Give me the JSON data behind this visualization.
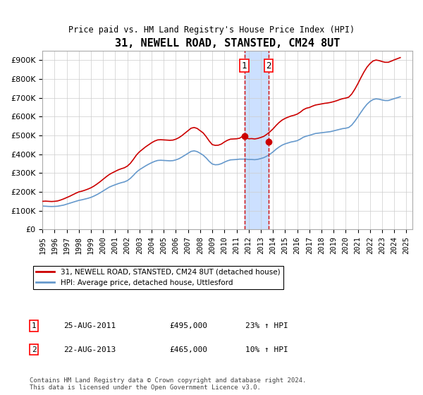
{
  "title": "31, NEWELL ROAD, STANSTED, CM24 8UT",
  "subtitle": "Price paid vs. HM Land Registry's House Price Index (HPI)",
  "ylabel_ticks": [
    "£0",
    "£100K",
    "£200K",
    "£300K",
    "£400K",
    "£500K",
    "£600K",
    "£700K",
    "£800K",
    "£900K"
  ],
  "ytick_values": [
    0,
    100000,
    200000,
    300000,
    400000,
    500000,
    600000,
    700000,
    800000,
    900000
  ],
  "ylim": [
    0,
    950000
  ],
  "xlim_start": 1995.0,
  "xlim_end": 2025.5,
  "legend_line1": "31, NEWELL ROAD, STANSTED, CM24 8UT (detached house)",
  "legend_line2": "HPI: Average price, detached house, Uttlesford",
  "sale1_date": "25-AUG-2011",
  "sale1_price": "£495,000",
  "sale1_hpi": "23% ↑ HPI",
  "sale1_year": 2011.65,
  "sale2_date": "22-AUG-2013",
  "sale2_price": "£465,000",
  "sale2_hpi": "10% ↑ HPI",
  "sale2_year": 2013.65,
  "footnote": "Contains HM Land Registry data © Crown copyright and database right 2024.\nThis data is licensed under the Open Government Licence v3.0.",
  "line_color_red": "#cc0000",
  "line_color_blue": "#6699cc",
  "vline_color": "#cc0000",
  "shade_color": "#cce0ff",
  "marker1_price": 495000,
  "marker2_price": 465000,
  "hpi_years": [
    1995.0,
    1995.25,
    1995.5,
    1995.75,
    1996.0,
    1996.25,
    1996.5,
    1996.75,
    1997.0,
    1997.25,
    1997.5,
    1997.75,
    1998.0,
    1998.25,
    1998.5,
    1998.75,
    1999.0,
    1999.25,
    1999.5,
    1999.75,
    2000.0,
    2000.25,
    2000.5,
    2000.75,
    2001.0,
    2001.25,
    2001.5,
    2001.75,
    2002.0,
    2002.25,
    2002.5,
    2002.75,
    2003.0,
    2003.25,
    2003.5,
    2003.75,
    2004.0,
    2004.25,
    2004.5,
    2004.75,
    2005.0,
    2005.25,
    2005.5,
    2005.75,
    2006.0,
    2006.25,
    2006.5,
    2006.75,
    2007.0,
    2007.25,
    2007.5,
    2007.75,
    2008.0,
    2008.25,
    2008.5,
    2008.75,
    2009.0,
    2009.25,
    2009.5,
    2009.75,
    2010.0,
    2010.25,
    2010.5,
    2010.75,
    2011.0,
    2011.25,
    2011.5,
    2011.75,
    2012.0,
    2012.25,
    2012.5,
    2012.75,
    2013.0,
    2013.25,
    2013.5,
    2013.75,
    2014.0,
    2014.25,
    2014.5,
    2014.75,
    2015.0,
    2015.25,
    2015.5,
    2015.75,
    2016.0,
    2016.25,
    2016.5,
    2016.75,
    2017.0,
    2017.25,
    2017.5,
    2017.75,
    2018.0,
    2018.25,
    2018.5,
    2018.75,
    2019.0,
    2019.25,
    2019.5,
    2019.75,
    2020.0,
    2020.25,
    2020.5,
    2020.75,
    2021.0,
    2021.25,
    2021.5,
    2021.75,
    2022.0,
    2022.25,
    2022.5,
    2022.75,
    2023.0,
    2023.25,
    2023.5,
    2023.75,
    2024.0,
    2024.25,
    2024.5
  ],
  "hpi_values": [
    125000,
    124000,
    123000,
    122500,
    123000,
    124000,
    127000,
    130000,
    135000,
    140000,
    145000,
    150000,
    155000,
    158000,
    162000,
    166000,
    171000,
    178000,
    186000,
    195000,
    205000,
    215000,
    225000,
    232000,
    238000,
    244000,
    249000,
    253000,
    260000,
    272000,
    288000,
    305000,
    318000,
    328000,
    338000,
    347000,
    355000,
    362000,
    367000,
    368000,
    367000,
    366000,
    365000,
    366000,
    370000,
    376000,
    385000,
    395000,
    405000,
    415000,
    418000,
    414000,
    405000,
    395000,
    380000,
    362000,
    348000,
    344000,
    345000,
    350000,
    358000,
    365000,
    370000,
    371000,
    372000,
    374000,
    374000,
    374000,
    372000,
    372000,
    371000,
    373000,
    377000,
    382000,
    390000,
    400000,
    412000,
    426000,
    438000,
    448000,
    455000,
    460000,
    465000,
    468000,
    472000,
    480000,
    490000,
    496000,
    500000,
    505000,
    510000,
    512000,
    514000,
    516000,
    518000,
    520000,
    524000,
    528000,
    532000,
    536000,
    538000,
    542000,
    555000,
    575000,
    598000,
    622000,
    645000,
    665000,
    680000,
    690000,
    694000,
    692000,
    688000,
    685000,
    685000,
    690000,
    695000,
    700000,
    705000
  ],
  "red_years": [
    1995.0,
    1995.25,
    1995.5,
    1995.75,
    1996.0,
    1996.25,
    1996.5,
    1996.75,
    1997.0,
    1997.25,
    1997.5,
    1997.75,
    1998.0,
    1998.25,
    1998.5,
    1998.75,
    1999.0,
    1999.25,
    1999.5,
    1999.75,
    2000.0,
    2000.25,
    2000.5,
    2000.75,
    2001.0,
    2001.25,
    2001.5,
    2001.75,
    2002.0,
    2002.25,
    2002.5,
    2002.75,
    2003.0,
    2003.25,
    2003.5,
    2003.75,
    2004.0,
    2004.25,
    2004.5,
    2004.75,
    2005.0,
    2005.25,
    2005.5,
    2005.75,
    2006.0,
    2006.25,
    2006.5,
    2006.75,
    2007.0,
    2007.25,
    2007.5,
    2007.75,
    2008.0,
    2008.25,
    2008.5,
    2008.75,
    2009.0,
    2009.25,
    2009.5,
    2009.75,
    2010.0,
    2010.25,
    2010.5,
    2010.75,
    2011.0,
    2011.25,
    2011.5,
    2011.75,
    2012.0,
    2012.25,
    2012.5,
    2012.75,
    2013.0,
    2013.25,
    2013.5,
    2013.75,
    2014.0,
    2014.25,
    2014.5,
    2014.75,
    2015.0,
    2015.25,
    2015.5,
    2015.75,
    2016.0,
    2016.25,
    2016.5,
    2016.75,
    2017.0,
    2017.25,
    2017.5,
    2017.75,
    2018.0,
    2018.25,
    2018.5,
    2018.75,
    2019.0,
    2019.25,
    2019.5,
    2019.75,
    2020.0,
    2020.25,
    2020.5,
    2020.75,
    2021.0,
    2021.25,
    2021.5,
    2021.75,
    2022.0,
    2022.25,
    2022.5,
    2022.75,
    2023.0,
    2023.25,
    2023.5,
    2023.75,
    2024.0,
    2024.25,
    2024.5
  ],
  "red_values": [
    150000,
    151000,
    150000,
    149000,
    150000,
    152000,
    157000,
    163000,
    170000,
    177000,
    185000,
    193000,
    200000,
    204000,
    209000,
    215000,
    222000,
    231000,
    242000,
    254000,
    267000,
    280000,
    292000,
    301000,
    309000,
    317000,
    323000,
    328000,
    337000,
    352000,
    373000,
    396000,
    413000,
    426000,
    439000,
    450000,
    461000,
    470000,
    476000,
    477000,
    476000,
    475000,
    474000,
    475000,
    480000,
    488000,
    499000,
    512000,
    525000,
    538000,
    542000,
    537000,
    525000,
    513000,
    493000,
    470000,
    451000,
    447000,
    448000,
    454000,
    465000,
    474000,
    480000,
    481000,
    482000,
    485000,
    495000,
    490000,
    482000,
    483000,
    481000,
    484000,
    489000,
    495000,
    506000,
    519000,
    534000,
    552000,
    568000,
    581000,
    590000,
    597000,
    603000,
    607000,
    613000,
    623000,
    636000,
    644000,
    648000,
    655000,
    661000,
    664000,
    667000,
    670000,
    672000,
    675000,
    679000,
    684000,
    690000,
    695000,
    698000,
    703000,
    720000,
    745000,
    774000,
    806000,
    836000,
    862000,
    881000,
    895000,
    900000,
    897000,
    892000,
    888000,
    888000,
    894000,
    901000,
    907000,
    913000
  ]
}
